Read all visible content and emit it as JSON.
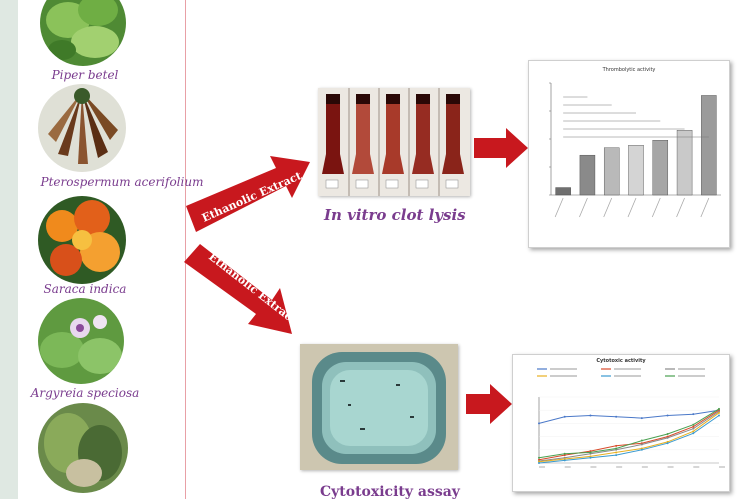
{
  "plants": [
    {
      "name": "Piper betel",
      "color": "#5c9a3a"
    },
    {
      "name": "Pterospermum acerifolium",
      "color": "#7a4a2a"
    },
    {
      "name": "Saraca indica",
      "color": "#e0701c"
    },
    {
      "name": "Argyreia speciosa",
      "color": "#6aa04a"
    },
    {
      "name": "",
      "color": "#4f7a3a"
    }
  ],
  "arrows": {
    "top_label": "Ethanolic Extract",
    "bottom_label": "Ethanolic Extract",
    "color": "#c8181e"
  },
  "captions": {
    "clot_lysis": "In vitro clot lysis",
    "cytotoxicity": "Cytotoxicity assay"
  },
  "chart_data": [
    {
      "type": "bar",
      "title": "Thrombolytic activity",
      "values": [
        3,
        16,
        19,
        20,
        22,
        26,
        40
      ],
      "colors": [
        "#6f6f6f",
        "#8a8a8a",
        "#b9b9b9",
        "#d4d4d4",
        "#a6a6a6",
        "#c9c9c9",
        "#9b9b9b"
      ]
    },
    {
      "type": "line",
      "title": "Cytotoxic activity",
      "series": [
        {
          "color": "#4a78c8",
          "values": [
            60,
            70,
            72,
            70,
            68,
            72,
            74,
            80
          ]
        },
        {
          "color": "#d84a2a",
          "values": [
            5,
            12,
            18,
            26,
            30,
            40,
            55,
            80
          ]
        },
        {
          "color": "#8a8a8a",
          "values": [
            3,
            8,
            14,
            20,
            28,
            38,
            52,
            78
          ]
        },
        {
          "color": "#e8b020",
          "values": [
            2,
            6,
            10,
            16,
            22,
            32,
            48,
            76
          ]
        },
        {
          "color": "#3a9ad0",
          "values": [
            0,
            4,
            8,
            12,
            20,
            30,
            45,
            72
          ]
        },
        {
          "color": "#4aa050",
          "values": [
            8,
            14,
            16,
            22,
            34,
            44,
            58,
            82
          ]
        }
      ]
    }
  ]
}
